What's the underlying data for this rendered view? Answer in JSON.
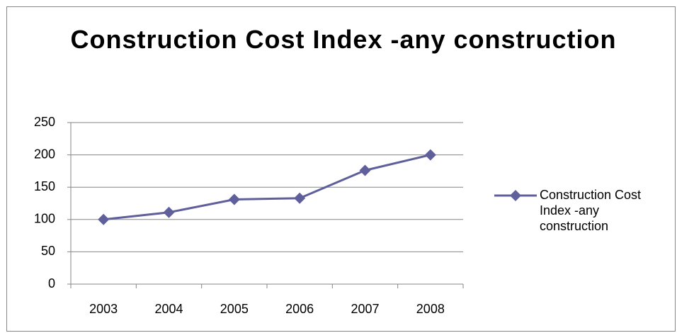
{
  "chart_data": {
    "type": "line",
    "title": "Construction Cost Index -any construction",
    "categories": [
      "2003",
      "2004",
      "2005",
      "2006",
      "2007",
      "2008"
    ],
    "series": [
      {
        "name": "Construction Cost Index -any construction",
        "color": "#5f5f9b",
        "values": [
          100,
          111,
          131,
          133,
          176,
          200
        ]
      }
    ],
    "ylim": [
      0,
      250
    ],
    "yticks": [
      0,
      50,
      100,
      150,
      200,
      250
    ],
    "grid": true,
    "legend": "right"
  }
}
